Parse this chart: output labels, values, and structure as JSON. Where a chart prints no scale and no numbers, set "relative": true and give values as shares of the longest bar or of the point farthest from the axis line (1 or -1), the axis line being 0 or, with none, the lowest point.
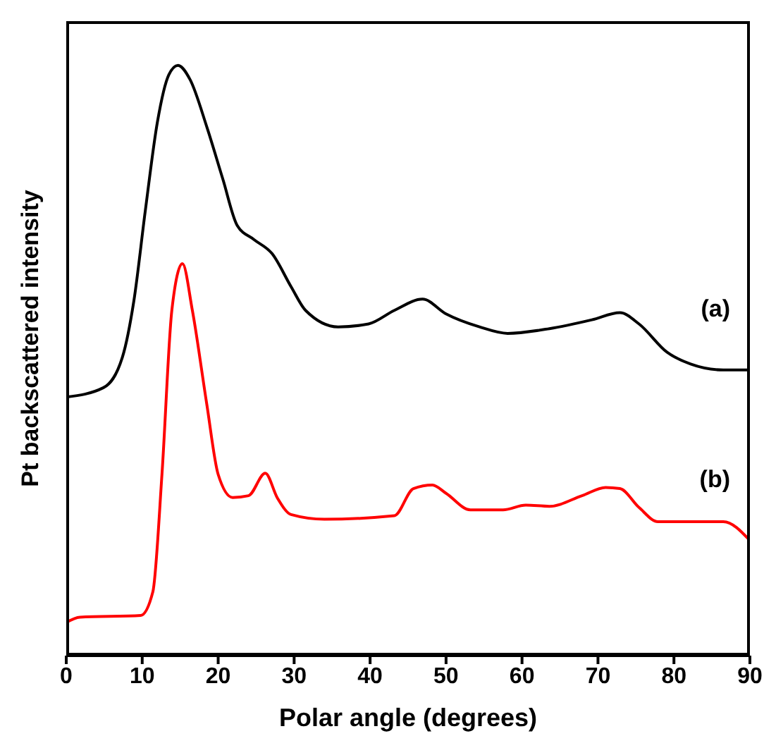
{
  "chart_data": {
    "type": "line",
    "relative": true,
    "xlabel": "Polar angle (degrees)",
    "ylabel": "Pt backscattered intensity",
    "xlim": [
      0,
      90
    ],
    "xticks": [
      0,
      10,
      20,
      30,
      40,
      50,
      60,
      70,
      80,
      90
    ],
    "grid": false,
    "legend": false,
    "marker": "none",
    "line_style": "solid",
    "series": [
      {
        "name": "(a)",
        "color": "#000000",
        "x": [
          0,
          4.9,
          7.4,
          8.9,
          10.4,
          12.0,
          13.5,
          14.7,
          16.3,
          18.5,
          20.6,
          22.5,
          24.7,
          27.1,
          29.6,
          31.5,
          35.8,
          39.8,
          43.2,
          46.9,
          50.0,
          54.4,
          58.1,
          63.6,
          69.2,
          72.9,
          75.4,
          79.1,
          82.2,
          86.5,
          90
        ],
        "values": [
          0.438,
          0.454,
          0.506,
          0.601,
          0.753,
          0.904,
          0.984,
          1.0,
          0.976,
          0.896,
          0.808,
          0.729,
          0.705,
          0.681,
          0.625,
          0.585,
          0.557,
          0.562,
          0.585,
          0.604,
          0.579,
          0.557,
          0.546,
          0.554,
          0.569,
          0.581,
          0.562,
          0.514,
          0.494,
          0.484,
          0.484
        ]
      },
      {
        "name": "(b)",
        "color": "#ff0000",
        "x": [
          0,
          1.8,
          9.8,
          11.4,
          12.6,
          13.9,
          15.3,
          16.6,
          18.5,
          20.0,
          21.9,
          24.0,
          26.2,
          27.8,
          29.6,
          34.0,
          43.2,
          45.7,
          48.2,
          50.0,
          53.2,
          57.5,
          60.5,
          63.6,
          67.9,
          71.0,
          72.9,
          75.4,
          77.9,
          86.5,
          90
        ],
        "values": [
          0.056,
          0.065,
          0.068,
          0.108,
          0.307,
          0.585,
          0.664,
          0.585,
          0.426,
          0.307,
          0.268,
          0.271,
          0.309,
          0.267,
          0.239,
          0.231,
          0.237,
          0.283,
          0.289,
          0.275,
          0.247,
          0.247,
          0.255,
          0.253,
          0.271,
          0.285,
          0.283,
          0.251,
          0.227,
          0.227,
          0.195
        ]
      }
    ]
  }
}
